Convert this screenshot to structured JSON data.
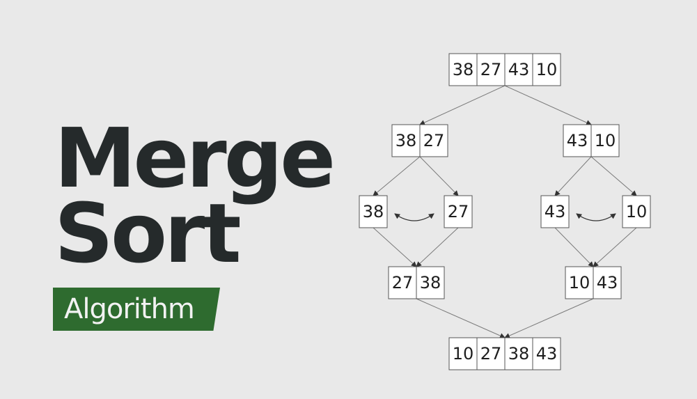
{
  "heading": {
    "line1": "Merge",
    "line2": "Sort",
    "badge": "Algorithm"
  },
  "colors": {
    "background": "#e9e9e9",
    "title": "#252a2b",
    "badge": "#2e6b2f",
    "badge_text": "#f2f2f2",
    "box_border": "#555555",
    "connector": "#7a7a7a"
  },
  "diagram": {
    "root": [
      "38",
      "27",
      "43",
      "10"
    ],
    "split_left": [
      "38",
      "27"
    ],
    "split_right": [
      "43",
      "10"
    ],
    "leaf_1": [
      "38"
    ],
    "leaf_2": [
      "27"
    ],
    "leaf_3": [
      "43"
    ],
    "leaf_4": [
      "10"
    ],
    "merge_left": [
      "27",
      "38"
    ],
    "merge_right": [
      "10",
      "43"
    ],
    "result": [
      "10",
      "27",
      "38",
      "43"
    ]
  }
}
